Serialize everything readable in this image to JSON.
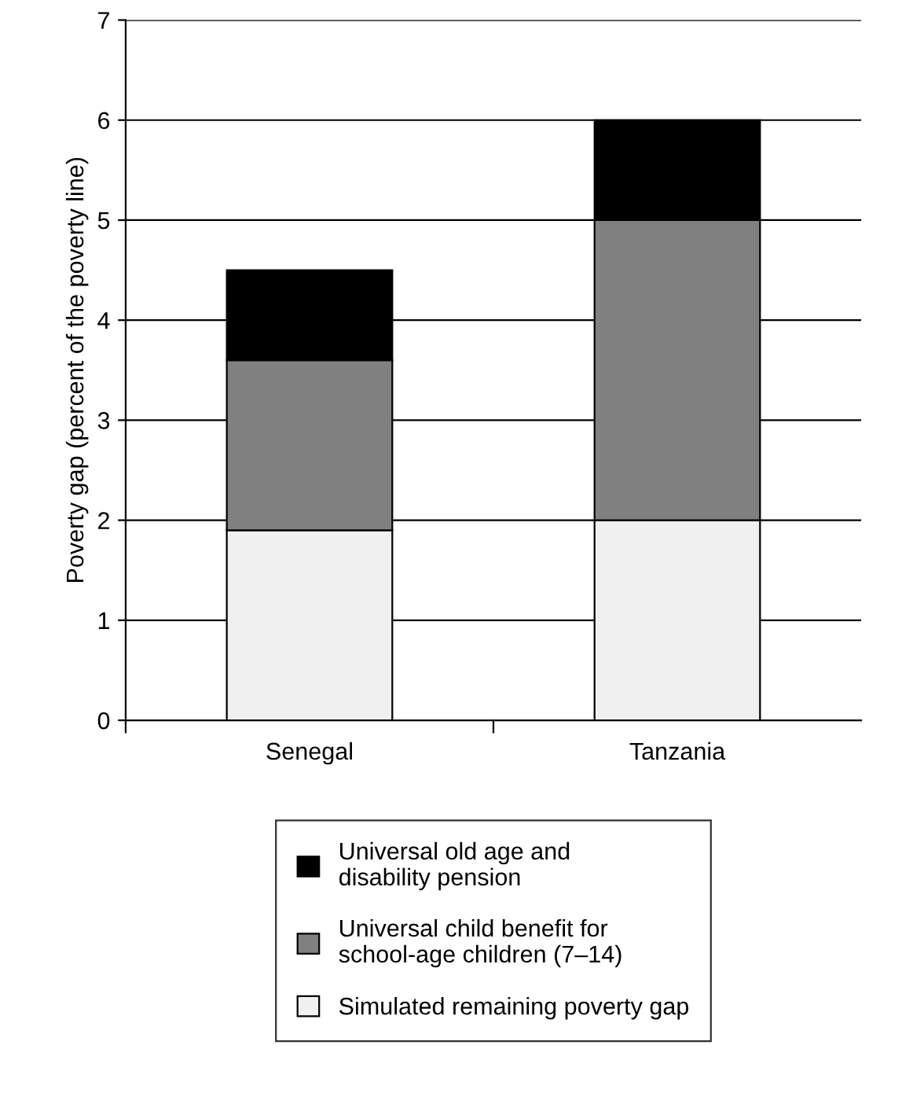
{
  "chart_data": {
    "type": "bar",
    "stacked": true,
    "ylabel": "Poverty gap (percent of the poverty line)",
    "categories": [
      "Senegal",
      "Tanzania"
    ],
    "series": [
      {
        "name": "Simulated remaining poverty gap",
        "color": "#f0f0f0",
        "values": [
          1.9,
          2.0
        ]
      },
      {
        "name": "Universal child benefit for\nschool-age children (7–14)",
        "color": "#808080",
        "values": [
          1.7,
          3.0
        ]
      },
      {
        "name": "Universal old age and\ndisability pension",
        "color": "#000000",
        "values": [
          0.9,
          1.0
        ]
      }
    ],
    "ylim": [
      0,
      7
    ],
    "yticks": [
      0,
      1,
      2,
      3,
      4,
      5,
      6,
      7
    ],
    "grid": "y",
    "legend": "bottom"
  }
}
